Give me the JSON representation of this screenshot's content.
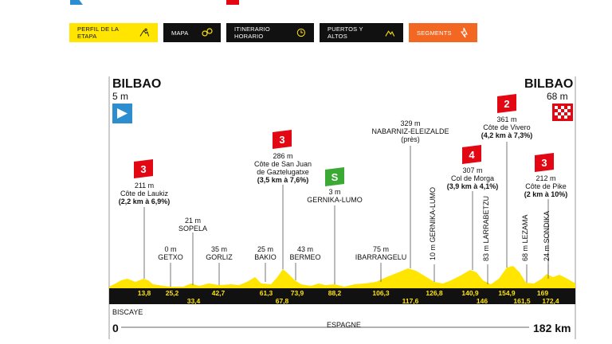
{
  "colors": {
    "yellow": "#ffe500",
    "orange": "#f26722",
    "red": "#e30613",
    "green": "#3aaa35",
    "blue": "#2c8ecf",
    "dark": "#111111"
  },
  "tabs": [
    {
      "label": "PERFIL DE LA ETAPA",
      "icon": "cyclist-mountain-icon",
      "style": "yellow"
    },
    {
      "label": "MAPA",
      "icon": "map-pins-icon",
      "style": "dark"
    },
    {
      "label": "ITINERARIO HORARIO",
      "icon": "clock-icon",
      "style": "dark"
    },
    {
      "label": "PUERTOS Y ALTOS",
      "icon": "mountain-icon",
      "style": "dark"
    },
    {
      "label": "SEGMENTS",
      "icon": "segment-arrow-icon",
      "style": "orange"
    }
  ],
  "profile": {
    "start": {
      "name": "BILBAO",
      "alt": "5 m"
    },
    "finish": {
      "name": "BILBAO",
      "alt": "68 m"
    },
    "region_left": "BISCAYE",
    "country": "ESPAGNE",
    "dist_start": "0",
    "dist_end": "182 km",
    "climbs": [
      {
        "cat": "3",
        "alt": "211 m",
        "name": "Côte de Laukiz",
        "detail": "(2,2 km à 6,9%)"
      },
      {
        "cat": "3",
        "alt": "286 m",
        "name": "Côte de San Juan",
        "name2": "de Gaztelugatxe",
        "detail": "(3,5 km à 7,6%)"
      },
      {
        "cat": "4",
        "alt": "307 m",
        "name": "Col de Morga",
        "detail": "(3,9 km à 4,1%)"
      },
      {
        "cat": "2",
        "alt": "361 m",
        "name": "Côte de Vivero",
        "detail": "(4,2 km à 7,3%)"
      },
      {
        "cat": "3",
        "alt": "212 m",
        "name": "Côte de Pike",
        "detail": "(2 km à 10%)"
      }
    ],
    "sprint": {
      "alt": "3 m",
      "name": "GERNIKA-LUMO",
      "symbol": "S"
    },
    "summit_nab": {
      "alt": "329 m",
      "name": "NABARNIZ-ELEIZALDE",
      "note": "(près)"
    },
    "towns": [
      {
        "alt": "21 m",
        "name": "SOPELA"
      },
      {
        "alt": "0 m",
        "name": "GETXO"
      },
      {
        "alt": "35 m",
        "name": "GORLIZ"
      },
      {
        "alt": "25 m",
        "name": "BAKIO"
      },
      {
        "alt": "43 m",
        "name": "BERMEO"
      },
      {
        "alt": "75 m",
        "name": "IBARRANGELU"
      }
    ],
    "vertical_towns": [
      "10 m GERNIKA-LUMO",
      "83 m LARRABETZU",
      "68 m LEZAMA",
      "24 m SONDIKA"
    ],
    "km_top": [
      "13,8",
      "25,2",
      "42,7",
      "61,3",
      "73,9",
      "88,2",
      "106,3",
      "126,8",
      "140,9",
      "154,9",
      "169"
    ],
    "km_bottom": [
      "33,4",
      "67,8",
      "117,6",
      "146",
      "161,5",
      "172,4"
    ]
  }
}
